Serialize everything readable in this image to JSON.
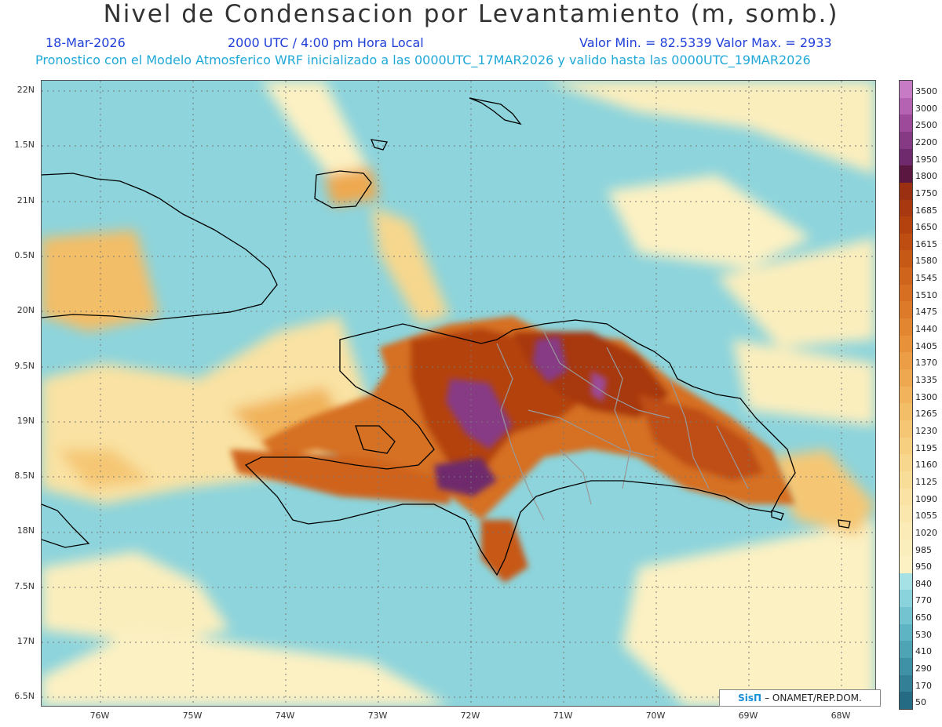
{
  "header": {
    "title": "Nivel de Condensacion por Levantamiento (m, somb.)",
    "date": "18-Mar-2026",
    "time": "2000 UTC / 4:00 pm Hora Local",
    "stats": "Valor Min. = 82.5339  Valor Max. = 2933",
    "forecast_info": "Pronostico con el Modelo Atmosferico WRF inicializado a las 0000UTC_17MAR2026 y valido hasta las  0000UTC_19MAR2026"
  },
  "map": {
    "lat_labels": [
      "22N",
      "1.5N",
      "21N",
      "0.5N",
      "20N",
      "9.5N",
      "19N",
      "8.5N",
      "18N",
      "7.5N",
      "17N",
      "6.5N"
    ],
    "lon_labels": [
      "76W",
      "75W",
      "74W",
      "73W",
      "72W",
      "71W",
      "70W",
      "69W",
      "68W"
    ]
  },
  "legend": {
    "labels": [
      "3500",
      "3000",
      "2500",
      "2200",
      "1950",
      "1800",
      "1750",
      "1685",
      "1650",
      "1615",
      "1580",
      "1545",
      "1510",
      "1475",
      "1440",
      "1405",
      "1370",
      "1335",
      "1300",
      "1265",
      "1230",
      "1195",
      "1160",
      "1125",
      "1090",
      "1055",
      "1020",
      "985",
      "950",
      "840",
      "770",
      "650",
      "530",
      "410",
      "290",
      "170",
      "50"
    ],
    "colors": [
      "#c77bc4",
      "#b463b2",
      "#9c4a99",
      "#873a84",
      "#6e2a6c",
      "#5a1840",
      "#9b2f12",
      "#a8380f",
      "#b4420f",
      "#be4d12",
      "#c75917",
      "#cf641c",
      "#d66f22",
      "#dc7a29",
      "#e28632",
      "#e7923b",
      "#eb9e46",
      "#eea950",
      "#f1b45c",
      "#f3be68",
      "#f5c774",
      "#f6cf81",
      "#f7d78d",
      "#f8dd98",
      "#f9e2a3",
      "#fae7ad",
      "#fbebb6",
      "#fbeebd",
      "#fcf1c3",
      "#a6e1e6",
      "#8bd3dc",
      "#73c4d0",
      "#5fb4c3",
      "#4ea3b5",
      "#3f92a6",
      "#327f96",
      "#266b84"
    ]
  },
  "credit": {
    "logo": "SisΠ",
    "text": "– ONAMET/REP.DOM."
  }
}
